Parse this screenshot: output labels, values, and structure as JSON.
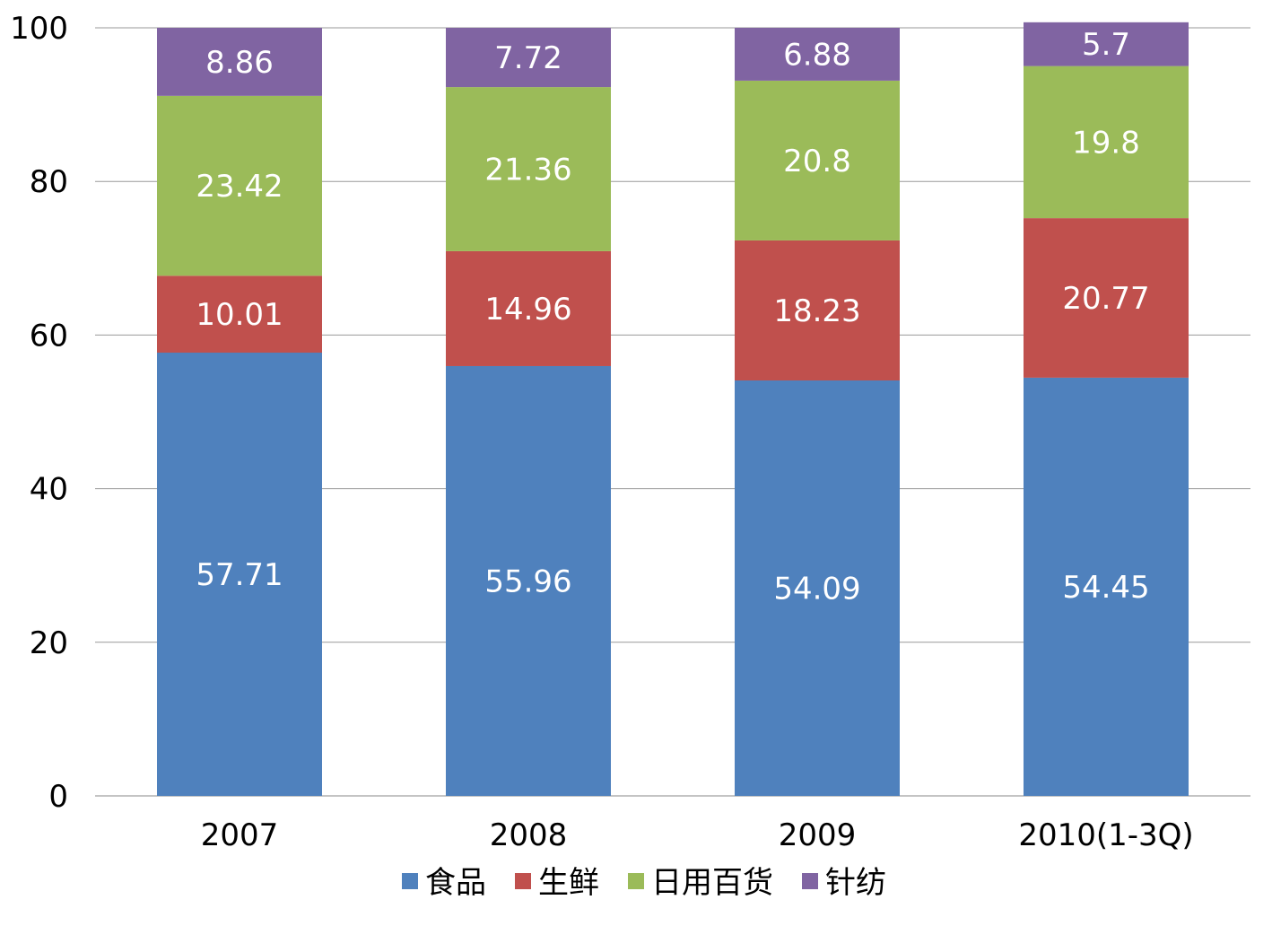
{
  "chart_data": {
    "type": "bar",
    "stacked": true,
    "categories": [
      "2007",
      "2008",
      "2009",
      "2010(1-3Q)"
    ],
    "series": [
      {
        "name": "食品",
        "color": "#4F81BD",
        "values": [
          57.71,
          55.96,
          54.09,
          54.45
        ]
      },
      {
        "name": "生鲜",
        "color": "#C0504D",
        "values": [
          10.01,
          14.96,
          18.23,
          20.77
        ]
      },
      {
        "name": "日用百货",
        "color": "#9BBB59",
        "values": [
          23.42,
          21.36,
          20.8,
          19.8
        ]
      },
      {
        "name": "针纺",
        "color": "#8064A2",
        "values": [
          8.86,
          7.72,
          6.88,
          5.7
        ]
      }
    ],
    "ylim": [
      0,
      100
    ],
    "yticks": [
      "0",
      "20",
      "40",
      "60",
      "80",
      "100"
    ],
    "grid": true,
    "legend": "bottom",
    "title": "",
    "xlabel": "",
    "ylabel": ""
  }
}
